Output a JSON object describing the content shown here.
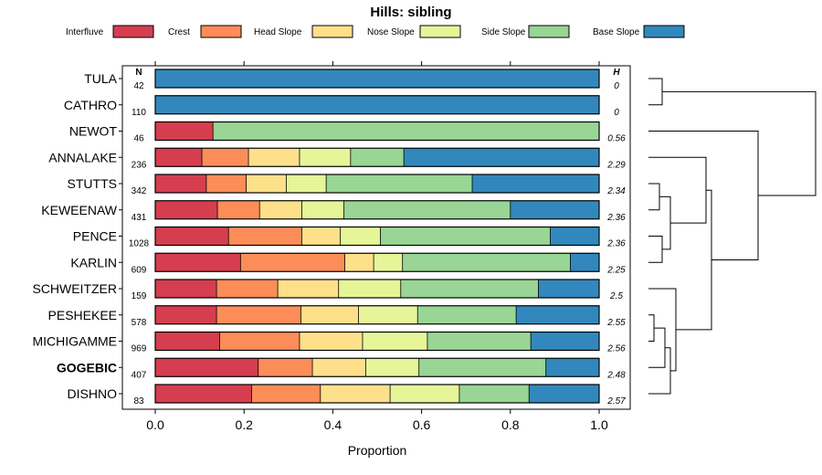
{
  "chart_data": {
    "type": "bar",
    "orientation": "horizontal",
    "stacked": true,
    "title": "Hills: sibling",
    "xlabel": "Proportion",
    "ylabel": "",
    "xlim": [
      0,
      1
    ],
    "x_ticks": [
      "0.0",
      "0.2",
      "0.4",
      "0.6",
      "0.8",
      "1.0"
    ],
    "n_header": "N",
    "h_header": "H",
    "legend_position": "top",
    "categories": [
      "TULA",
      "CATHRO",
      "NEWOT",
      "ANNALAKE",
      "STUTTS",
      "KEWEENAW",
      "PENCE",
      "KARLIN",
      "SCHWEITZER",
      "PESHEKEE",
      "MICHIGAMME",
      "GOGEBIC",
      "DISHNO"
    ],
    "highlighted_category": "GOGEBIC",
    "n_values": [
      "42",
      "110",
      "46",
      "236",
      "342",
      "431",
      "1028",
      "609",
      "159",
      "578",
      "969",
      "407",
      "83"
    ],
    "h_values": [
      "0",
      "0",
      "0.56",
      "2.29",
      "2.34",
      "2.36",
      "2.36",
      "2.25",
      "2.5",
      "2.55",
      "2.56",
      "2.48",
      "2.57"
    ],
    "series": [
      {
        "name": "Interfluve",
        "color": "#D53E4F",
        "values": [
          0,
          0,
          0.13,
          0.105,
          0.115,
          0.14,
          0.165,
          0.192,
          0.138,
          0.138,
          0.145,
          0.232,
          0.217
        ]
      },
      {
        "name": "Crest",
        "color": "#FC8D59",
        "values": [
          0,
          0,
          0,
          0.105,
          0.09,
          0.095,
          0.165,
          0.235,
          0.138,
          0.19,
          0.18,
          0.122,
          0.155
        ]
      },
      {
        "name": "Head Slope",
        "color": "#FEE08B",
        "values": [
          0,
          0,
          0,
          0.115,
          0.09,
          0.095,
          0.087,
          0.065,
          0.137,
          0.13,
          0.142,
          0.12,
          0.157
        ]
      },
      {
        "name": "Nose Slope",
        "color": "#E6F598",
        "values": [
          0,
          0,
          0,
          0.115,
          0.09,
          0.095,
          0.09,
          0.065,
          0.14,
          0.133,
          0.146,
          0.12,
          0.156
        ]
      },
      {
        "name": "Side Slope",
        "color": "#99D594",
        "values": [
          0,
          0,
          0.87,
          0.12,
          0.329,
          0.375,
          0.383,
          0.378,
          0.31,
          0.222,
          0.233,
          0.286,
          0.157
        ]
      },
      {
        "name": "Base Slope",
        "color": "#3288BD",
        "values": [
          1,
          1,
          0,
          0.44,
          0.286,
          0.2,
          0.11,
          0.065,
          0.137,
          0.187,
          0.154,
          0.12,
          0.158
        ]
      }
    ],
    "dendrogram": {
      "leaves": [
        "TULA",
        "CATHRO",
        "NEWOT",
        "ANNALAKE",
        "STUTTS",
        "KEWEENAW",
        "PENCE",
        "KARLIN",
        "SCHWEITZER",
        "PESHEKEE",
        "MICHIGAMME",
        "GOGEBIC",
        "DISHNO"
      ],
      "merges": [
        {
          "left": 0,
          "right": 1,
          "height": 0.05
        },
        {
          "left": 9,
          "right": 10,
          "height": 0.02
        },
        {
          "left": 4,
          "right": 5,
          "height": 0.04
        },
        {
          "left": 6,
          "right": 7,
          "height": 0.05
        },
        {
          "left": -2,
          "right": 11,
          "height": 0.06
        },
        {
          "left": -5,
          "right": 12,
          "height": 0.08
        },
        {
          "left": 8,
          "right": -6,
          "height": 0.1
        },
        {
          "left": -3,
          "right": -4,
          "height": 0.08
        },
        {
          "left": 3,
          "right": -8,
          "height": 0.21
        },
        {
          "left": -9,
          "right": -7,
          "height": 0.23
        },
        {
          "left": 2,
          "right": -10,
          "height": 0.4
        },
        {
          "left": -1,
          "right": -11,
          "height": 0.61
        }
      ]
    }
  }
}
